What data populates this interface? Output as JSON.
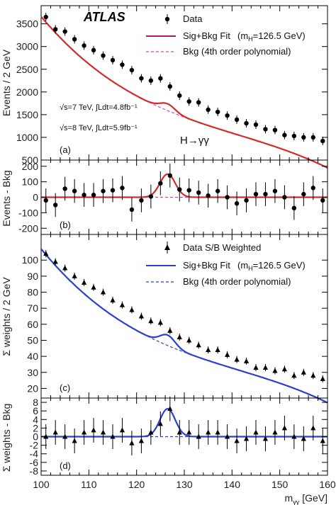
{
  "chart_data": [
    {
      "id": "a",
      "type": "scatter",
      "panel_label": "(a)",
      "ylabel": "Events / 2 GeV",
      "ylim": [
        500,
        3900
      ],
      "yticks": [
        500,
        1000,
        1500,
        2000,
        2500,
        3000,
        3500
      ],
      "xlim": [
        100,
        160
      ],
      "experiment": "ATLAS",
      "channel": "H→γγ",
      "energy_lines": [
        "√s=7 TeV, ∫Ldt=4.8fb⁻¹",
        "√s=8 TeV, ∫Ldt=5.9fb⁻¹"
      ],
      "legend": {
        "data": "Data",
        "fit": "Sig+Bkg Fit",
        "fit_mass": "(m",
        "fit_mass_sub": "H",
        "fit_mass_value": "=126.5 GeV)",
        "bkg": "Bkg (4th order polynomial)"
      },
      "colors": {
        "fit": "#d42a2a",
        "bkg": "#e040a0",
        "legend_fit": "#b01878",
        "data": "#000000"
      },
      "x": [
        101,
        103,
        105,
        107,
        109,
        111,
        113,
        115,
        117,
        119,
        121,
        123,
        125,
        127,
        129,
        131,
        133,
        135,
        137,
        139,
        141,
        143,
        145,
        147,
        149,
        151,
        153,
        155,
        157,
        159
      ],
      "y": [
        3650,
        3380,
        3330,
        3160,
        3020,
        2920,
        2800,
        2700,
        2600,
        2480,
        2300,
        2250,
        2300,
        2120,
        1920,
        1790,
        1770,
        1610,
        1560,
        1480,
        1390,
        1310,
        1280,
        1180,
        1160,
        1050,
        1030,
        1000,
        1000,
        920
      ],
      "bkg_curve": {
        "p0": 3660,
        "p1": -125,
        "p2": 2.25,
        "p3": -0.0182,
        "x_ref": 100
      },
      "signal": {
        "mass": 126.5,
        "sigma": 1.6,
        "amplitude": 150
      }
    },
    {
      "id": "b",
      "type": "scatter",
      "panel_label": "(b)",
      "ylabel": "Events - Bkg",
      "ylim": [
        -240,
        240
      ],
      "yticks": [
        -200,
        -100,
        0,
        100,
        200
      ],
      "xlim": [
        100,
        160
      ],
      "x": [
        101,
        103,
        105,
        107,
        109,
        111,
        113,
        115,
        117,
        119,
        121,
        123,
        125,
        127,
        129,
        131,
        133,
        135,
        137,
        139,
        141,
        143,
        145,
        147,
        149,
        151,
        153,
        155,
        157,
        159
      ],
      "y": [
        -20,
        -50,
        55,
        40,
        15,
        15,
        40,
        45,
        60,
        -80,
        -20,
        5,
        90,
        140,
        50,
        45,
        30,
        10,
        40,
        0,
        -40,
        -20,
        20,
        20,
        40,
        0,
        -70,
        20,
        60,
        -20
      ],
      "colors": {
        "fit": "#d42a2a",
        "bkg": "#e040a0"
      },
      "signal": {
        "mass": 126.5,
        "sigma": 1.6,
        "amplitude": 150
      }
    },
    {
      "id": "c",
      "type": "scatter",
      "panel_label": "(c)",
      "ylabel": "Σ weights / 2 GeV",
      "ylim": [
        14,
        116
      ],
      "yticks": [
        20,
        30,
        40,
        50,
        60,
        70,
        80,
        90,
        100
      ],
      "xlim": [
        100,
        160
      ],
      "legend": {
        "data": "Data S/B Weighted",
        "fit": "Sig+Bkg Fit",
        "fit_mass": "(m",
        "fit_mass_sub": "H",
        "fit_mass_value": "=126.5 GeV)",
        "bkg": "Bkg (4th order polynomial)"
      },
      "colors": {
        "fit": "#2a3fd4",
        "bkg": "#2a3fd4",
        "data": "#000000"
      },
      "x": [
        101,
        103,
        105,
        107,
        109,
        111,
        113,
        115,
        117,
        119,
        121,
        123,
        125,
        127,
        129,
        131,
        133,
        135,
        137,
        139,
        141,
        143,
        145,
        147,
        149,
        151,
        153,
        155,
        157,
        159
      ],
      "y": [
        104,
        99,
        95,
        90,
        86,
        83,
        80,
        75,
        72,
        69,
        65,
        62,
        61,
        56,
        52,
        50,
        47,
        44,
        44,
        41,
        38,
        37,
        33,
        33,
        31,
        32,
        28,
        30,
        28,
        26
      ],
      "bkg_curve": {
        "p0": 107,
        "p1": -3.65,
        "p2": 0.066,
        "p3": -0.00053,
        "x_ref": 100
      },
      "signal": {
        "mass": 126.5,
        "sigma": 1.6,
        "amplitude": 6.5
      }
    },
    {
      "id": "d",
      "type": "scatter",
      "panel_label": "(d)",
      "ylabel": "Σ weights - Bkg",
      "ylim": [
        -9,
        9
      ],
      "yticks": [
        -8,
        -6,
        -4,
        -2,
        0,
        2,
        4,
        6,
        8
      ],
      "xlim": [
        100,
        160
      ],
      "xticks": [
        100,
        110,
        120,
        130,
        140,
        150,
        160
      ],
      "xlabel": "m",
      "xlabel_sub": "γγ",
      "xlabel_unit": "[GeV]",
      "x": [
        101,
        103,
        105,
        107,
        109,
        111,
        113,
        115,
        117,
        119,
        121,
        123,
        125,
        127,
        129,
        131,
        133,
        135,
        137,
        139,
        141,
        143,
        145,
        147,
        149,
        151,
        153,
        155,
        157,
        159
      ],
      "y": [
        0,
        1,
        0,
        -1,
        1,
        1.5,
        1,
        0,
        1.5,
        -1.5,
        -1,
        1,
        3,
        6.5,
        1,
        1,
        0,
        1,
        1,
        0,
        -1,
        -0.5,
        1,
        -0.5,
        1,
        2,
        0,
        -0.5,
        2,
        -1
      ],
      "colors": {
        "fit": "#2a3fd4",
        "bkg": "#2a3fd4"
      },
      "signal": {
        "mass": 126.5,
        "sigma": 1.6,
        "amplitude": 6.5
      }
    }
  ]
}
